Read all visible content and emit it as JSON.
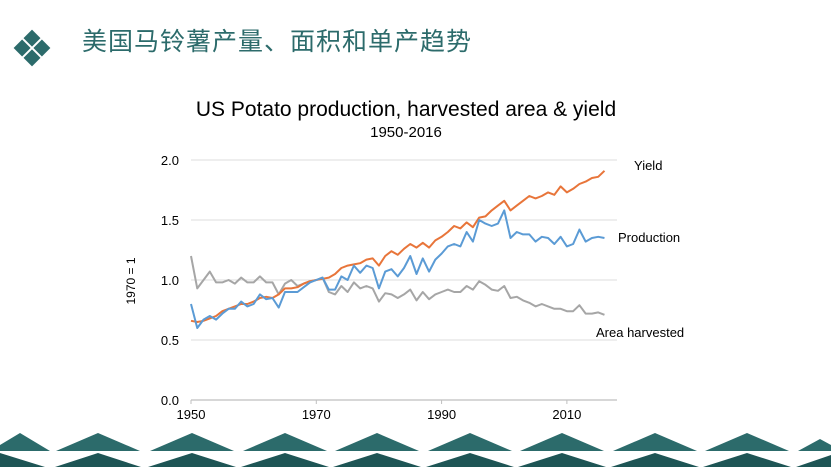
{
  "slide": {
    "title": "美国马铃薯产量、面积和单产趋势",
    "icon": "diamond-icon",
    "accent_color": "#2c6b6b"
  },
  "chart_data": {
    "type": "line",
    "title": "US Potato production, harvested area & yield",
    "subtitle": "1950-2016",
    "ylabel": "1970 = 1",
    "xlabel": "",
    "xlim": [
      1950,
      2018
    ],
    "ylim": [
      0,
      2.0
    ],
    "x_ticks": [
      1950,
      1970,
      1990,
      2010
    ],
    "y_ticks": [
      0.0,
      0.5,
      1.0,
      1.5,
      2.0
    ],
    "y_tick_labels": [
      "0.0",
      "0.5",
      "1.0",
      "1.5",
      "2.0"
    ],
    "grid": "horizontal",
    "legend": "inline labels at right end of each series",
    "x": [
      1950,
      1951,
      1952,
      1953,
      1954,
      1955,
      1956,
      1957,
      1958,
      1959,
      1960,
      1961,
      1962,
      1963,
      1964,
      1965,
      1966,
      1967,
      1968,
      1969,
      1970,
      1971,
      1972,
      1973,
      1974,
      1975,
      1976,
      1977,
      1978,
      1979,
      1980,
      1981,
      1982,
      1983,
      1984,
      1985,
      1986,
      1987,
      1988,
      1989,
      1990,
      1991,
      1992,
      1993,
      1994,
      1995,
      1996,
      1997,
      1998,
      1999,
      2000,
      2001,
      2002,
      2003,
      2004,
      2005,
      2006,
      2007,
      2008,
      2009,
      2010,
      2011,
      2012,
      2013,
      2014,
      2015,
      2016
    ],
    "series": [
      {
        "name": "Yield",
        "color": "#e8753a",
        "values": [
          0.66,
          0.65,
          0.66,
          0.68,
          0.7,
          0.74,
          0.76,
          0.78,
          0.8,
          0.8,
          0.82,
          0.85,
          0.86,
          0.85,
          0.88,
          0.93,
          0.93,
          0.94,
          0.97,
          0.99,
          1.0,
          1.01,
          1.02,
          1.05,
          1.1,
          1.12,
          1.13,
          1.14,
          1.17,
          1.18,
          1.12,
          1.2,
          1.24,
          1.21,
          1.26,
          1.3,
          1.27,
          1.31,
          1.27,
          1.33,
          1.36,
          1.4,
          1.45,
          1.43,
          1.48,
          1.44,
          1.52,
          1.53,
          1.58,
          1.62,
          1.66,
          1.58,
          1.62,
          1.66,
          1.7,
          1.68,
          1.7,
          1.73,
          1.71,
          1.78,
          1.73,
          1.76,
          1.8,
          1.82,
          1.85,
          1.86,
          1.91
        ]
      },
      {
        "name": "Production",
        "color": "#5b9bd5",
        "values": [
          0.8,
          0.6,
          0.67,
          0.7,
          0.67,
          0.72,
          0.76,
          0.76,
          0.82,
          0.78,
          0.8,
          0.88,
          0.84,
          0.85,
          0.77,
          0.9,
          0.9,
          0.9,
          0.94,
          0.98,
          1.0,
          1.02,
          0.92,
          0.92,
          1.03,
          1.0,
          1.12,
          1.06,
          1.12,
          1.1,
          0.93,
          1.07,
          1.09,
          1.03,
          1.1,
          1.2,
          1.05,
          1.18,
          1.07,
          1.17,
          1.22,
          1.28,
          1.3,
          1.28,
          1.4,
          1.32,
          1.5,
          1.47,
          1.45,
          1.47,
          1.58,
          1.35,
          1.4,
          1.38,
          1.38,
          1.32,
          1.36,
          1.35,
          1.3,
          1.36,
          1.28,
          1.3,
          1.42,
          1.32,
          1.35,
          1.36,
          1.35
        ]
      },
      {
        "name": "Area harvested",
        "color": "#a6a6a6",
        "values": [
          1.2,
          0.93,
          1.0,
          1.07,
          0.98,
          0.98,
          1.0,
          0.97,
          1.02,
          0.98,
          0.98,
          1.03,
          0.98,
          0.98,
          0.88,
          0.97,
          1.0,
          0.95,
          0.97,
          0.99,
          1.0,
          1.02,
          0.9,
          0.88,
          0.95,
          0.9,
          0.98,
          0.93,
          0.95,
          0.93,
          0.82,
          0.89,
          0.88,
          0.85,
          0.88,
          0.92,
          0.83,
          0.9,
          0.84,
          0.88,
          0.9,
          0.92,
          0.9,
          0.9,
          0.95,
          0.92,
          0.99,
          0.96,
          0.92,
          0.91,
          0.95,
          0.85,
          0.86,
          0.83,
          0.81,
          0.78,
          0.8,
          0.78,
          0.76,
          0.76,
          0.74,
          0.74,
          0.79,
          0.72,
          0.72,
          0.73,
          0.71
        ]
      }
    ]
  }
}
